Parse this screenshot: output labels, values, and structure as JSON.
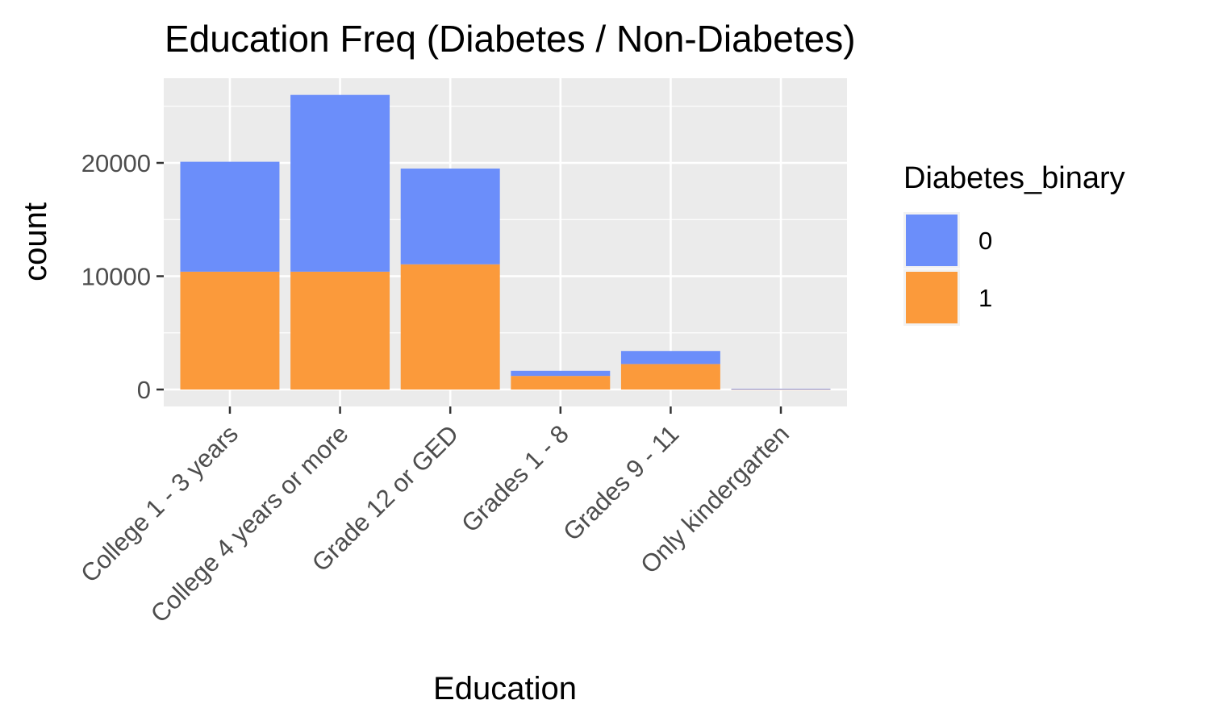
{
  "chart_data": {
    "type": "bar",
    "stacked": true,
    "title": "Education Freq (Diabetes / Non-Diabetes)",
    "xlabel": "Education",
    "ylabel": "count",
    "categories": [
      "College 1 - 3 years",
      "College 4 years or more",
      "Grade 12 or GED",
      "Grades 1 - 8",
      "Grades 9 - 11",
      "Only kindergarten"
    ],
    "series": [
      {
        "name": "0",
        "color": "#6b8efa",
        "values": [
          9700,
          15600,
          8450,
          450,
          1150,
          30
        ]
      },
      {
        "name": "1",
        "color": "#fb9a3b",
        "values": [
          10400,
          10400,
          11050,
          1200,
          2250,
          40
        ]
      }
    ],
    "ylim": [
      0,
      27500
    ],
    "yticks": [
      0,
      10000,
      20000
    ],
    "grid": true,
    "legend": {
      "title": "Diabetes_binary",
      "position": "right"
    }
  }
}
